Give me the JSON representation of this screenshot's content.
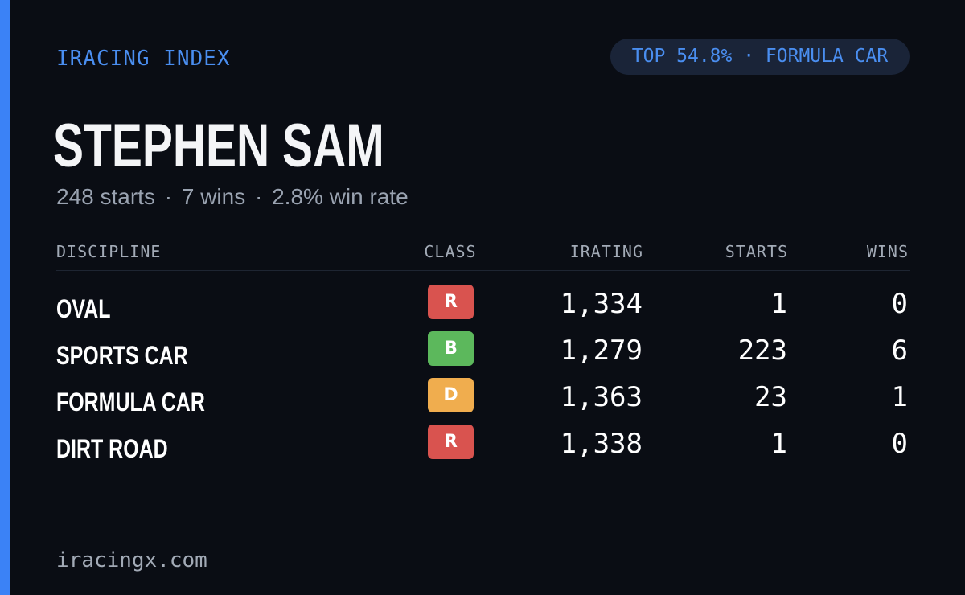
{
  "colors": {
    "accent": "#3b82f6",
    "accent_text": "#4a8ef0",
    "class_R": "#d9534f",
    "class_B": "#5cb85c",
    "class_D": "#f0ad4e"
  },
  "header": {
    "brand": "IRACING INDEX",
    "pill": "TOP 54.8% · FORMULA CAR"
  },
  "profile": {
    "name": "STEPHEN SAM",
    "starts": "248 starts",
    "wins": "7 wins",
    "win_rate": "2.8% win rate",
    "separator": "·"
  },
  "table": {
    "columns": [
      "DISCIPLINE",
      "CLASS",
      "IRATING",
      "STARTS",
      "WINS"
    ],
    "rows": [
      {
        "discipline": "OVAL",
        "class": "R",
        "irating": "1,334",
        "starts": "1",
        "wins": "0"
      },
      {
        "discipline": "SPORTS CAR",
        "class": "B",
        "irating": "1,279",
        "starts": "223",
        "wins": "6"
      },
      {
        "discipline": "FORMULA CAR",
        "class": "D",
        "irating": "1,363",
        "starts": "23",
        "wins": "1"
      },
      {
        "discipline": "DIRT ROAD",
        "class": "R",
        "irating": "1,338",
        "starts": "1",
        "wins": "0"
      }
    ]
  },
  "footer": {
    "site": "iracingx.com"
  }
}
